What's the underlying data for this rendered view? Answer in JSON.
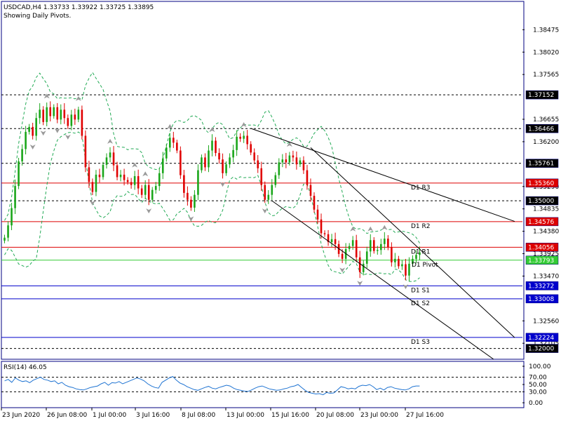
{
  "header": {
    "title": "USDCAD,H4  1.33733 1.33922 1.33725 1.33895",
    "subtitle": "Showing Daily Pivots."
  },
  "colors": {
    "up": "#1aa61a",
    "down": "#e00000",
    "pivot": "#33cc33",
    "resistance": "#dd0000",
    "support": "#0000cc",
    "bollinger": "#22aa55",
    "rsi": "#1e73d2",
    "frame": "#000080"
  },
  "chart_data": [
    {
      "type": "candlestick",
      "symbol": "USDCAD",
      "timeframe": "H4",
      "ylim": [
        1.3178,
        1.3905
      ],
      "y_ticks": [
        "1.38475",
        "1.38020",
        "1.37565",
        "1.36655",
        "1.36200",
        "1.35290",
        "1.34835",
        "1.34380",
        "1.33925",
        "1.33470",
        "1.32560",
        "1.32105"
      ],
      "x_ticks": [
        "23 Jun 2020",
        "26 Jun 08:00",
        "1 Jul 00:00",
        "3 Jul 16:00",
        "8 Jul 08:00",
        "13 Jul 00:00",
        "15 Jul 16:00",
        "20 Jul 08:00",
        "23 Jul 00:00",
        "27 Jul 16:00"
      ],
      "close_series": [
        1.3425,
        1.345,
        1.3485,
        1.353,
        1.358,
        1.3605,
        1.364,
        1.365,
        1.3632,
        1.3668,
        1.3685,
        1.366,
        1.369,
        1.3672,
        1.369,
        1.3665,
        1.3685,
        1.3668,
        1.3652,
        1.3675,
        1.3665,
        1.3685,
        1.3632,
        1.3568,
        1.3538,
        1.3518,
        1.3553,
        1.3548,
        1.3573,
        1.3588,
        1.3598,
        1.3572,
        1.3548,
        1.3553,
        1.3542,
        1.3538,
        1.3532,
        1.355,
        1.3525,
        1.3512,
        1.3532,
        1.3502,
        1.3522,
        1.353,
        1.3556,
        1.3586,
        1.3608,
        1.3628,
        1.3618,
        1.3602,
        1.3552,
        1.3516,
        1.3502,
        1.3486,
        1.3512,
        1.3562,
        1.3588,
        1.3568,
        1.3602,
        1.3622,
        1.3597,
        1.3584,
        1.3556,
        1.3574,
        1.3588,
        1.3603,
        1.363,
        1.3626,
        1.3632,
        1.3615,
        1.3598,
        1.3582,
        1.3566,
        1.3532,
        1.3502,
        1.3512,
        1.3532,
        1.3552,
        1.3578,
        1.3584,
        1.3578,
        1.3592,
        1.3588,
        1.3574,
        1.3582,
        1.3562,
        1.3532,
        1.351,
        1.3482,
        1.3462,
        1.3434,
        1.3432,
        1.3416,
        1.3422,
        1.3412,
        1.3392,
        1.3382,
        1.3402,
        1.3408,
        1.342,
        1.3385,
        1.3355,
        1.3372,
        1.3397,
        1.342,
        1.3398,
        1.34,
        1.3412,
        1.3423,
        1.3406,
        1.3375,
        1.3382,
        1.3367,
        1.3371,
        1.3348,
        1.3372,
        1.3382,
        1.339,
        1.3395
      ],
      "pivots": [
        {
          "label": "D1 R3",
          "value": 1.3536,
          "text": "1.35360",
          "role": "resistance"
        },
        {
          "label": "D1 R2",
          "value": 1.34576,
          "text": "1.34576",
          "role": "resistance"
        },
        {
          "label": "D1 R1",
          "value": 1.34056,
          "text": "1.34056",
          "role": "resistance"
        },
        {
          "label": "D1 Pivot",
          "value": 1.33793,
          "text": "1.33793",
          "role": "pivot"
        },
        {
          "label": "D1 S1",
          "value": 1.33272,
          "text": "1.33272",
          "role": "support"
        },
        {
          "label": "D1 S2",
          "value": 1.33008,
          "text": "1.33008",
          "role": "support"
        },
        {
          "label": "D1 S3",
          "value": 1.32224,
          "text": "1.32224",
          "role": "support"
        }
      ],
      "levels": [
        {
          "value": 1.37152,
          "text": "1.37152"
        },
        {
          "value": 1.36466,
          "text": "1.36466"
        },
        {
          "value": 1.35761,
          "text": "1.35761"
        },
        {
          "value": 1.35,
          "text": "1.35000"
        },
        {
          "value": 1.32,
          "text": "1.32000"
        }
      ],
      "trendlines": [
        {
          "from": {
            "bar": 70,
            "price": 1.3647
          },
          "to": {
            "bar": 145,
            "price": 1.3458
          }
        },
        {
          "from": {
            "bar": 87,
            "price": 1.3608
          },
          "to": {
            "bar": 145,
            "price": 1.3222
          }
        },
        {
          "from": {
            "bar": 76,
            "price": 1.35
          },
          "to": {
            "bar": 139,
            "price": 1.3178
          }
        }
      ],
      "current_price": {
        "value": 1.33895,
        "text": "1.33895"
      }
    },
    {
      "type": "line",
      "title": "RSI(14) 46.05",
      "ylim": [
        0,
        100
      ],
      "y_ticks": [
        "100.00",
        "70.00",
        "50.00",
        "30.00",
        "0.00"
      ],
      "levels": [
        70,
        30
      ],
      "values": [
        60,
        64,
        56,
        68,
        62,
        58,
        60,
        55,
        62,
        66,
        70,
        64,
        62,
        58,
        60,
        52,
        56,
        48,
        44,
        42,
        38,
        36,
        35,
        38,
        42,
        44,
        46,
        52,
        56,
        48,
        55,
        54,
        58,
        52,
        56,
        60,
        64,
        68,
        65,
        60,
        52,
        46,
        42,
        40,
        56,
        62,
        68,
        72,
        62,
        54,
        50,
        44,
        40,
        36,
        34,
        38,
        42,
        45,
        40,
        38,
        42,
        45,
        48,
        46,
        40,
        36,
        34,
        32,
        31,
        35,
        40,
        44,
        46,
        42,
        38,
        36,
        34,
        35,
        38,
        40,
        44,
        46,
        50,
        42,
        34,
        28,
        26,
        24,
        25,
        22,
        28,
        26,
        27,
        35,
        44,
        42,
        38,
        40,
        38,
        45,
        48,
        47,
        50,
        44,
        36,
        40,
        35,
        42,
        44,
        40,
        38,
        36,
        35,
        38,
        44,
        46,
        46.05
      ]
    }
  ]
}
